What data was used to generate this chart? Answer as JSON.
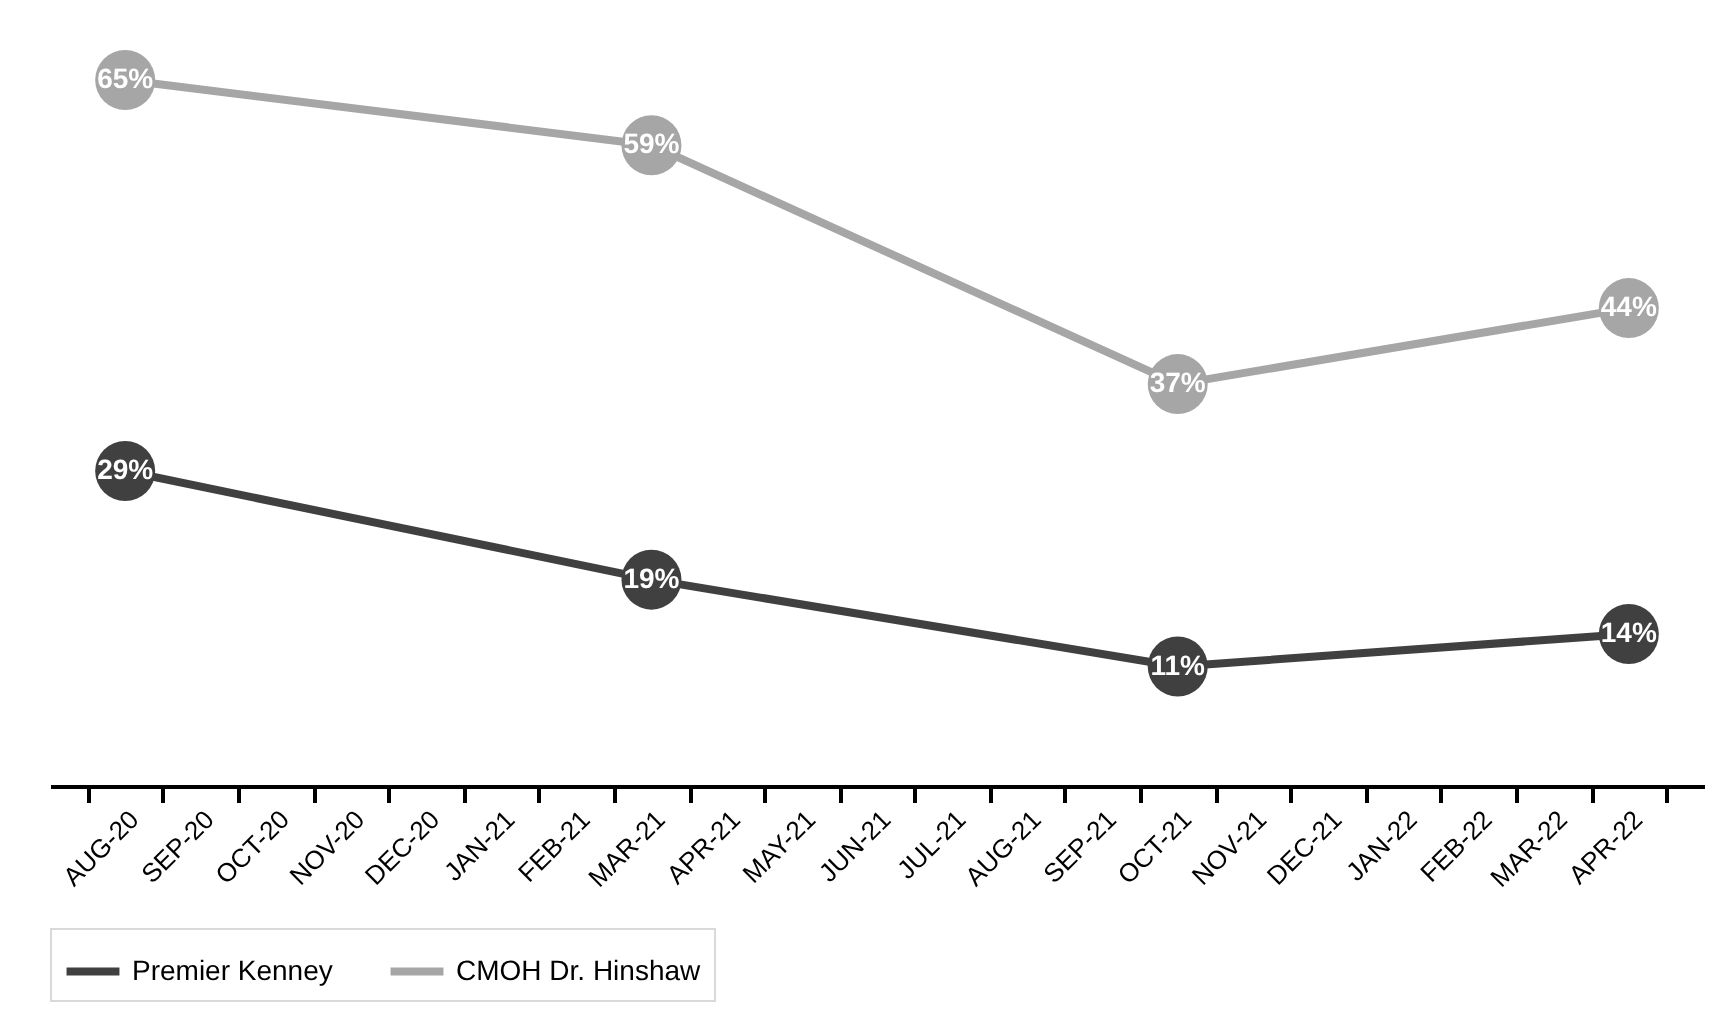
{
  "chart_data": {
    "type": "line",
    "categories": [
      "AUG-20",
      "SEP-20",
      "OCT-20",
      "NOV-20",
      "DEC-20",
      "JAN-21",
      "FEB-21",
      "MAR-21",
      "APR-21",
      "MAY-21",
      "JUN-21",
      "JUL-21",
      "AUG-21",
      "SEP-21",
      "OCT-21",
      "NOV-21",
      "DEC-21",
      "JAN-22",
      "FEB-22",
      "MAR-22",
      "APR-22"
    ],
    "series": [
      {
        "name": "Premier Kenney",
        "color": "#404040",
        "values": [
          29,
          null,
          null,
          null,
          null,
          null,
          null,
          19,
          null,
          null,
          null,
          null,
          null,
          null,
          11,
          null,
          null,
          null,
          null,
          null,
          14
        ],
        "value_labels": [
          "29%",
          null,
          null,
          null,
          null,
          null,
          null,
          "19%",
          null,
          null,
          null,
          null,
          null,
          null,
          "11%",
          null,
          null,
          null,
          null,
          null,
          "14%"
        ]
      },
      {
        "name": "CMOH Dr. Hinshaw",
        "color": "#a6a6a6",
        "values": [
          65,
          null,
          null,
          null,
          null,
          null,
          null,
          59,
          null,
          null,
          null,
          null,
          null,
          null,
          37,
          null,
          null,
          null,
          null,
          null,
          44
        ],
        "value_labels": [
          "65%",
          null,
          null,
          null,
          null,
          null,
          null,
          "59%",
          null,
          null,
          null,
          null,
          null,
          null,
          "37%",
          null,
          null,
          null,
          null,
          null,
          "44%"
        ]
      }
    ],
    "marker": "circle",
    "line_style": "solid",
    "legend": "bottom",
    "tick_labels": "x"
  }
}
